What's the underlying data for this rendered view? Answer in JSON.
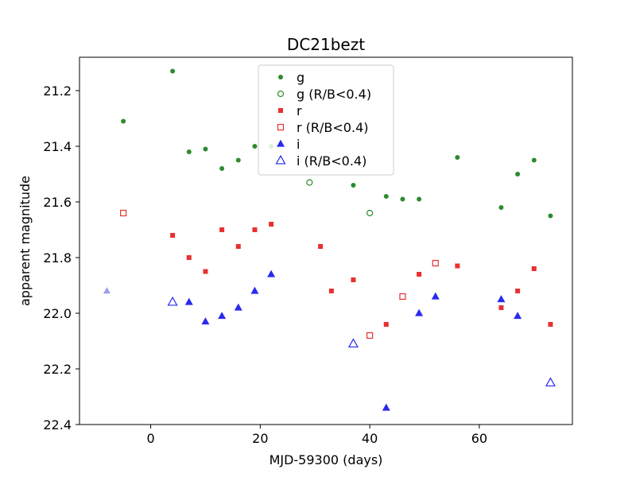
{
  "chart_data": {
    "type": "scatter",
    "title": "DC21bezt",
    "xlabel": "MJD-59300 (days)",
    "ylabel": "apparent magnitude",
    "xlim": [
      -13,
      77
    ],
    "ylim": [
      22.4,
      21.08
    ],
    "y_inverted": true,
    "x_ticks": [
      0,
      20,
      40,
      60
    ],
    "y_ticks": [
      21.2,
      21.4,
      21.6,
      21.8,
      22.0,
      22.2,
      22.4
    ],
    "x_tick_labels": [
      "0",
      "20",
      "40",
      "60"
    ],
    "y_tick_labels": [
      "21.2",
      "21.4",
      "21.6",
      "21.8",
      "22.0",
      "22.2",
      "22.4"
    ],
    "grid": false,
    "legend_position": "top-center",
    "series": [
      {
        "name": "g",
        "color": "#2e8b2e",
        "marker": "circle",
        "filled": true,
        "size": 6,
        "points": [
          [
            -5,
            21.31
          ],
          [
            4,
            21.13
          ],
          [
            7,
            21.42
          ],
          [
            10,
            21.41
          ],
          [
            13,
            21.48
          ],
          [
            16,
            21.45
          ],
          [
            19,
            21.4
          ],
          [
            22,
            21.4
          ],
          [
            37,
            21.54
          ],
          [
            43,
            21.58
          ],
          [
            46,
            21.59
          ],
          [
            49,
            21.59
          ],
          [
            56,
            21.44
          ],
          [
            64,
            21.62
          ],
          [
            67,
            21.5
          ],
          [
            70,
            21.45
          ],
          [
            73,
            21.65
          ]
        ]
      },
      {
        "name": "g (R/B<0.4)",
        "color": "#2e8b2e",
        "marker": "circle",
        "filled": false,
        "size": 7,
        "points": [
          [
            29,
            21.53
          ],
          [
            40,
            21.64
          ]
        ]
      },
      {
        "name": "r",
        "color": "#e83030",
        "marker": "square",
        "filled": true,
        "size": 6,
        "points": [
          [
            4,
            21.72
          ],
          [
            7,
            21.8
          ],
          [
            10,
            21.85
          ],
          [
            13,
            21.7
          ],
          [
            16,
            21.76
          ],
          [
            19,
            21.7
          ],
          [
            22,
            21.68
          ],
          [
            31,
            21.76
          ],
          [
            33,
            21.92
          ],
          [
            37,
            21.88
          ],
          [
            43,
            22.04
          ],
          [
            49,
            21.86
          ],
          [
            56,
            21.83
          ],
          [
            64,
            21.98
          ],
          [
            67,
            21.92
          ],
          [
            70,
            21.84
          ],
          [
            73,
            22.04
          ]
        ]
      },
      {
        "name": "r (R/B<0.4)",
        "color": "#e83030",
        "marker": "square",
        "filled": false,
        "size": 7,
        "points": [
          [
            -5,
            21.64
          ],
          [
            40,
            22.08
          ],
          [
            46,
            21.94
          ],
          [
            52,
            21.82
          ]
        ]
      },
      {
        "name": "i",
        "color": "#2a2aee",
        "marker": "triangle",
        "filled": true,
        "size": 10,
        "points": [
          [
            7,
            21.96
          ],
          [
            10,
            22.03
          ],
          [
            13,
            22.01
          ],
          [
            16,
            21.98
          ],
          [
            19,
            21.92
          ],
          [
            22,
            21.86
          ],
          [
            43,
            22.34
          ],
          [
            49,
            22.0
          ],
          [
            52,
            21.94
          ],
          [
            64,
            21.95
          ],
          [
            67,
            22.01
          ]
        ]
      },
      {
        "name": "i (R/B<0.4)",
        "color": "#2a2aee",
        "marker": "triangle",
        "filled": false,
        "size": 11,
        "points": [
          [
            4,
            21.96
          ],
          [
            37,
            22.11
          ],
          [
            73,
            22.25
          ]
        ]
      },
      {
        "name": "",
        "color": "#9c9cf0",
        "marker": "triangle",
        "filled": true,
        "size": 9,
        "in_legend": false,
        "points": [
          [
            -8,
            21.92
          ]
        ]
      }
    ]
  }
}
